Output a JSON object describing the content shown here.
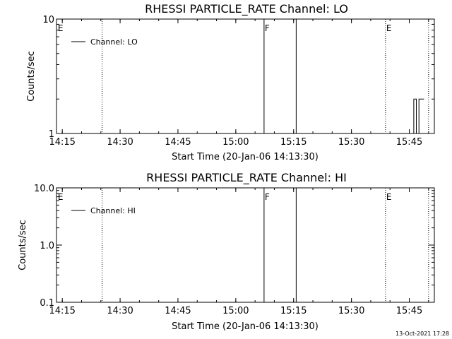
{
  "chart_data": [
    {
      "type": "line",
      "title": "RHESSI PARTICLE_RATE Channel: LO",
      "xlabel": "Start Time (20-Jan-06 14:13:30)",
      "ylabel": "Counts/sec",
      "yscale": "log",
      "ylim": [
        1,
        10
      ],
      "y_tick_labels": [
        "1",
        "10"
      ],
      "x_tick_labels": [
        "14:15",
        "14:30",
        "14:45",
        "15:00",
        "15:15",
        "15:30",
        "15:45"
      ],
      "xlim": [
        "14:13:30",
        "15:51:30"
      ],
      "legend": {
        "label": "Channel: LO",
        "placement": "top-left"
      },
      "markers": [
        {
          "time": "14:13:40",
          "label": "E",
          "style": "none"
        },
        {
          "time": "14:25:20",
          "label": "",
          "style": "dotted"
        },
        {
          "time": "15:07:20",
          "label": "F",
          "style": "solid"
        },
        {
          "time": "15:15:40",
          "label": "",
          "style": "solid"
        },
        {
          "time": "15:38:50",
          "label": "E",
          "style": "dotted"
        },
        {
          "time": "15:50:00",
          "label": "",
          "style": "dotted"
        }
      ],
      "series": [
        {
          "name": "Channel: LO",
          "x": [
            "15:46:10",
            "15:46:10",
            "15:46:50",
            "15:46:50",
            "15:47:30",
            "15:47:30",
            "15:48:50"
          ],
          "y": [
            1,
            2,
            2,
            1,
            1,
            2,
            2
          ]
        }
      ]
    },
    {
      "type": "line",
      "title": "RHESSI PARTICLE_RATE Channel: HI",
      "xlabel": "Start Time (20-Jan-06 14:13:30)",
      "ylabel": "Counts/sec",
      "yscale": "log",
      "ylim": [
        0.1,
        10
      ],
      "y_tick_labels": [
        "0.1",
        "1.0",
        "10.0"
      ],
      "x_tick_labels": [
        "14:15",
        "14:30",
        "14:45",
        "15:00",
        "15:15",
        "15:30",
        "15:45"
      ],
      "xlim": [
        "14:13:30",
        "15:51:30"
      ],
      "legend": {
        "label": "Channel: HI",
        "placement": "top-left"
      },
      "markers": [
        {
          "time": "14:13:40",
          "label": "E",
          "style": "none"
        },
        {
          "time": "14:25:20",
          "label": "",
          "style": "dotted"
        },
        {
          "time": "15:07:20",
          "label": "F",
          "style": "solid"
        },
        {
          "time": "15:15:40",
          "label": "",
          "style": "solid"
        },
        {
          "time": "15:38:50",
          "label": "E",
          "style": "dotted"
        },
        {
          "time": "15:50:00",
          "label": "",
          "style": "dotted"
        }
      ],
      "series": [
        {
          "name": "Channel: HI",
          "x": [],
          "y": []
        }
      ]
    }
  ],
  "footer": {
    "timestamp": "13-Oct-2021 17:28"
  },
  "colors": {
    "foreground": "#000000",
    "background": "#ffffff"
  }
}
